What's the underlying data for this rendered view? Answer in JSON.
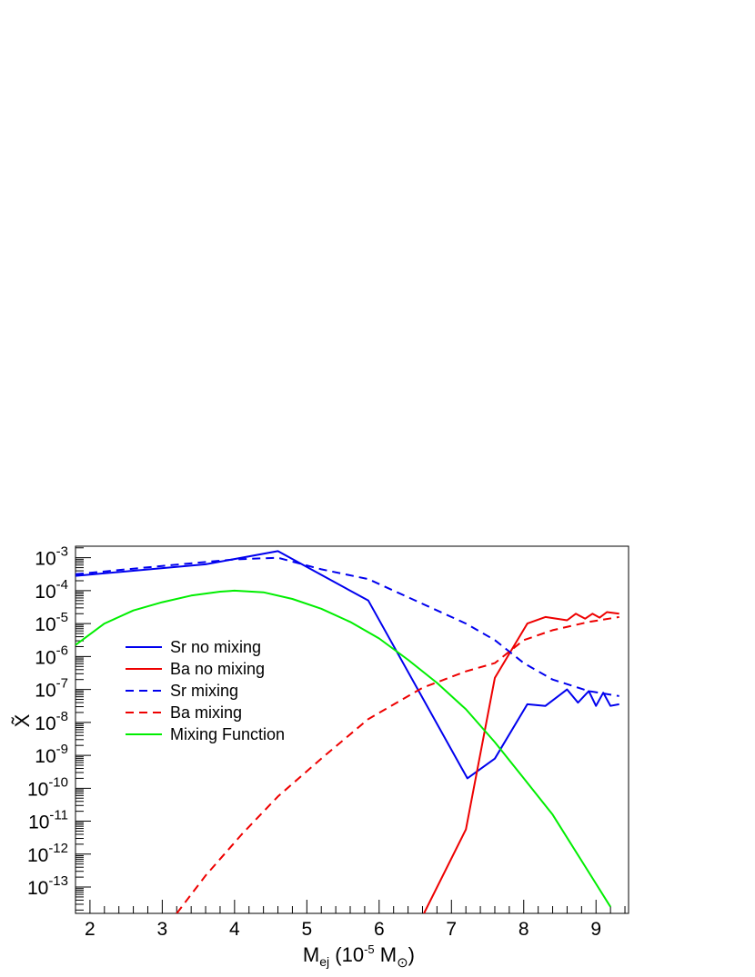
{
  "chart_data": {
    "type": "line",
    "title": "",
    "xlabel": {
      "main": "M",
      "sub": "ej",
      "paren_open": " (10",
      "exp": "-5",
      "unit": " M",
      "symbol": "⊙",
      "paren_close": ")"
    },
    "ylabel": "X̃",
    "xlim": [
      1.8,
      9.45
    ],
    "ylim_log10": [
      -13.8,
      -2.65
    ],
    "y_scale": "log",
    "x_ticks": [
      2,
      3,
      4,
      5,
      6,
      7,
      8,
      9
    ],
    "y_ticks": [
      {
        "base": "10",
        "exp": "-13",
        "v": -13
      },
      {
        "base": "10",
        "exp": "-12",
        "v": -12
      },
      {
        "base": "10",
        "exp": "-11",
        "v": -11
      },
      {
        "base": "10",
        "exp": "-10",
        "v": -10
      },
      {
        "base": "10",
        "exp": "-9",
        "v": -9
      },
      {
        "base": "10",
        "exp": "-8",
        "v": -8
      },
      {
        "base": "10",
        "exp": "-7",
        "v": -7
      },
      {
        "base": "10",
        "exp": "-6",
        "v": -6
      },
      {
        "base": "10",
        "exp": "-5",
        "v": -5
      },
      {
        "base": "10",
        "exp": "-4",
        "v": -4
      },
      {
        "base": "10",
        "exp": "-3",
        "v": -3
      }
    ],
    "grid": false,
    "legend_position": "left-center",
    "series": [
      {
        "name": "Sr no mixing",
        "color": "#0000ee",
        "dash": "solid",
        "x": [
          1.8,
          3.6,
          4.6,
          5.85,
          7.22,
          7.6,
          8.05,
          8.3,
          8.6,
          8.75,
          8.9,
          9.0,
          9.1,
          9.2,
          9.32
        ],
        "log10y": [
          -3.55,
          -3.2,
          -2.8,
          -4.3,
          -9.7,
          -9.1,
          -7.45,
          -7.5,
          -7.0,
          -7.4,
          -7.05,
          -7.5,
          -7.1,
          -7.5,
          -7.45
        ]
      },
      {
        "name": "Ba no mixing",
        "color": "#ee0000",
        "dash": "solid",
        "x": [
          6.62,
          7.2,
          7.6,
          8.05,
          8.3,
          8.6,
          8.72,
          8.85,
          8.95,
          9.05,
          9.15,
          9.32
        ],
        "log10y": [
          -13.8,
          -11.25,
          -6.65,
          -5.0,
          -4.8,
          -4.9,
          -4.7,
          -4.85,
          -4.7,
          -4.82,
          -4.65,
          -4.7
        ]
      },
      {
        "name": "Sr mixing",
        "color": "#0000ee",
        "dash": "dashed",
        "x": [
          1.8,
          3.0,
          4.0,
          4.6,
          5.2,
          5.85,
          6.6,
          7.2,
          7.6,
          8.0,
          8.4,
          8.9,
          9.32
        ],
        "log10y": [
          -3.5,
          -3.25,
          -3.05,
          -3.0,
          -3.35,
          -3.65,
          -4.4,
          -5.0,
          -5.5,
          -6.2,
          -6.7,
          -7.05,
          -7.2
        ]
      },
      {
        "name": "Ba mixing",
        "color": "#ee0000",
        "dash": "dashed",
        "x": [
          3.2,
          3.6,
          4.1,
          4.6,
          5.2,
          5.85,
          6.6,
          7.2,
          7.6,
          8.0,
          8.4,
          8.9,
          9.32
        ],
        "log10y": [
          -13.8,
          -12.65,
          -11.4,
          -10.25,
          -9.1,
          -7.9,
          -6.95,
          -6.45,
          -6.2,
          -5.5,
          -5.2,
          -4.95,
          -4.8
        ]
      },
      {
        "name": "Mixing Function",
        "color": "#00ee00",
        "dash": "solid",
        "x": [
          1.8,
          2.2,
          2.6,
          3.0,
          3.4,
          3.8,
          4.0,
          4.4,
          4.8,
          5.2,
          5.6,
          6.0,
          6.4,
          6.8,
          7.2,
          7.6,
          8.0,
          8.4,
          8.8,
          9.0,
          9.2
        ],
        "log10y": [
          -5.65,
          -5.0,
          -4.6,
          -4.35,
          -4.15,
          -4.03,
          -4.0,
          -4.05,
          -4.25,
          -4.55,
          -4.95,
          -5.45,
          -6.1,
          -6.8,
          -7.6,
          -8.6,
          -9.7,
          -10.8,
          -12.2,
          -12.9,
          -13.6
        ]
      }
    ]
  }
}
